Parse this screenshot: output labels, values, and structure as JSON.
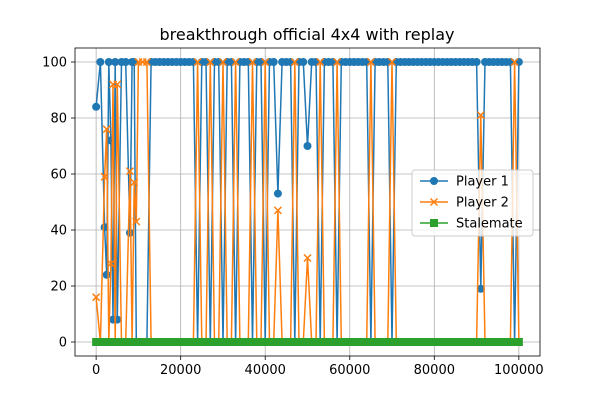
{
  "chart_data": {
    "type": "line",
    "title": "breakthrough official 4x4 with replay",
    "xlabel": "",
    "ylabel": "",
    "xlim": [
      -5000,
      105000
    ],
    "ylim": [
      -5,
      105
    ],
    "xticks": [
      0,
      20000,
      40000,
      60000,
      80000,
      100000
    ],
    "xtick_labels": [
      "0",
      "20000",
      "40000",
      "60000",
      "80000",
      "100000"
    ],
    "yticks": [
      0,
      20,
      40,
      60,
      80,
      100
    ],
    "ytick_labels": [
      "0",
      "20",
      "40",
      "60",
      "80",
      "100"
    ],
    "grid": true,
    "legend_position": "center-right",
    "x": [
      0,
      1000,
      2000,
      2500,
      3000,
      3500,
      4000,
      4500,
      5000,
      6000,
      7000,
      8000,
      8500,
      9000,
      9500,
      10000,
      11000,
      12000,
      13000,
      14000,
      15000,
      16000,
      17000,
      18000,
      19000,
      20000,
      21000,
      22000,
      23000,
      24000,
      25000,
      26000,
      27000,
      28000,
      29000,
      30000,
      31000,
      32000,
      33000,
      34000,
      35000,
      36000,
      37000,
      38000,
      39000,
      40000,
      41000,
      42000,
      43000,
      44000,
      45000,
      46000,
      47000,
      48000,
      49000,
      50000,
      51000,
      52000,
      53000,
      54000,
      55000,
      56000,
      57000,
      58000,
      59000,
      60000,
      61000,
      62000,
      63000,
      64000,
      65000,
      66000,
      67000,
      68000,
      69000,
      70000,
      71000,
      72000,
      73000,
      74000,
      75000,
      76000,
      77000,
      78000,
      79000,
      80000,
      81000,
      82000,
      83000,
      84000,
      85000,
      86000,
      87000,
      88000,
      89000,
      90000,
      91000,
      92000,
      93000,
      94000,
      95000,
      96000,
      97000,
      98000,
      99000,
      100000
    ],
    "series": [
      {
        "name": "Player 1",
        "color": "#1f77b4",
        "marker": "circle",
        "values": [
          84,
          100,
          41,
          24,
          100,
          72,
          8,
          100,
          8,
          100,
          100,
          39,
          100,
          100,
          0,
          0,
          0,
          0,
          100,
          100,
          100,
          100,
          100,
          100,
          100,
          100,
          100,
          100,
          100,
          0,
          100,
          100,
          0,
          100,
          100,
          0,
          100,
          100,
          0,
          100,
          100,
          100,
          0,
          100,
          100,
          0,
          100,
          100,
          53,
          100,
          100,
          100,
          0,
          100,
          100,
          70,
          100,
          100,
          0,
          100,
          100,
          100,
          0,
          100,
          100,
          100,
          100,
          100,
          100,
          100,
          0,
          100,
          100,
          100,
          100,
          0,
          100,
          100,
          100,
          100,
          100,
          100,
          100,
          100,
          100,
          100,
          100,
          100,
          100,
          100,
          100,
          100,
          100,
          100,
          100,
          100,
          19,
          100,
          100,
          100,
          100,
          100,
          100,
          100,
          0,
          100
        ]
      },
      {
        "name": "Player 2",
        "color": "#ff7f0e",
        "marker": "x",
        "values": [
          16,
          0,
          59,
          76,
          0,
          28,
          92,
          0,
          92,
          0,
          0,
          61,
          0,
          57,
          43,
          100,
          100,
          100,
          0,
          0,
          0,
          0,
          0,
          0,
          0,
          0,
          0,
          0,
          0,
          100,
          0,
          0,
          100,
          0,
          0,
          100,
          0,
          0,
          100,
          0,
          0,
          0,
          100,
          0,
          0,
          100,
          0,
          0,
          47,
          0,
          0,
          0,
          100,
          0,
          0,
          30,
          0,
          0,
          100,
          0,
          0,
          0,
          100,
          0,
          0,
          0,
          0,
          0,
          0,
          0,
          100,
          0,
          0,
          0,
          0,
          100,
          0,
          0,
          0,
          0,
          0,
          0,
          0,
          0,
          0,
          0,
          0,
          0,
          0,
          0,
          0,
          0,
          0,
          0,
          0,
          0,
          81,
          0,
          0,
          0,
          0,
          0,
          0,
          0,
          100,
          0
        ]
      },
      {
        "name": "Stalemate",
        "color": "#2ca02c",
        "marker": "square",
        "values": [
          0,
          0,
          0,
          0,
          0,
          0,
          0,
          0,
          0,
          0,
          0,
          0,
          0,
          0,
          0,
          0,
          0,
          0,
          0,
          0,
          0,
          0,
          0,
          0,
          0,
          0,
          0,
          0,
          0,
          0,
          0,
          0,
          0,
          0,
          0,
          0,
          0,
          0,
          0,
          0,
          0,
          0,
          0,
          0,
          0,
          0,
          0,
          0,
          0,
          0,
          0,
          0,
          0,
          0,
          0,
          0,
          0,
          0,
          0,
          0,
          0,
          0,
          0,
          0,
          0,
          0,
          0,
          0,
          0,
          0,
          0,
          0,
          0,
          0,
          0,
          0,
          0,
          0,
          0,
          0,
          0,
          0,
          0,
          0,
          0,
          0,
          0,
          0,
          0,
          0,
          0,
          0,
          0,
          0,
          0,
          0,
          0,
          0,
          0,
          0,
          0,
          0,
          0,
          0,
          0,
          0
        ]
      }
    ]
  }
}
